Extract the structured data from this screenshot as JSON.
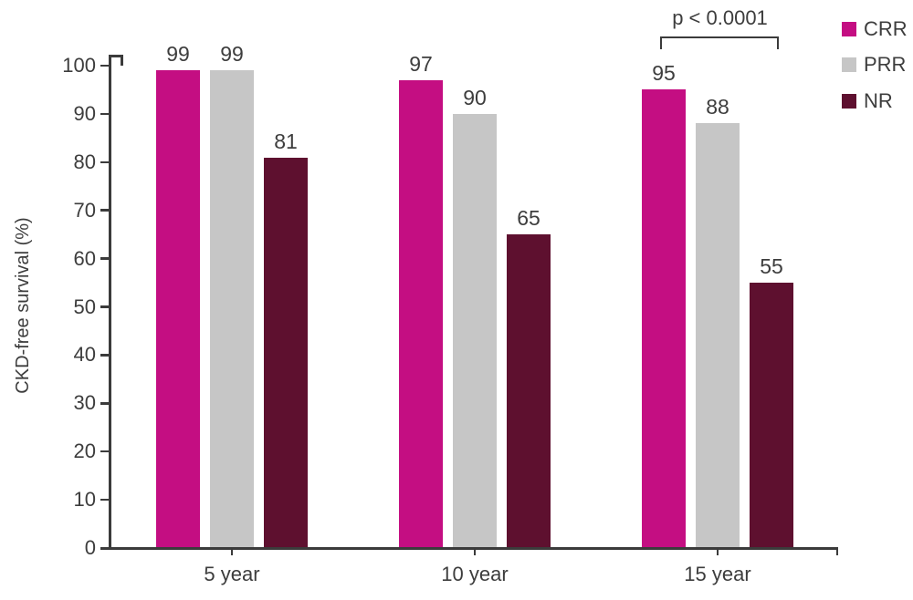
{
  "colors": {
    "ink": "#3B3B3B",
    "text": "#3D3D3D",
    "background": "#FFFFFF",
    "crr": "#C40E82",
    "prr": "#C6C6C6",
    "nr": "#5E102F"
  },
  "chart_data": {
    "type": "bar",
    "title": "",
    "xlabel": "",
    "ylabel": "CKD-free survival (%)",
    "ylim": [
      0,
      100
    ],
    "yticks": [
      0,
      10,
      20,
      30,
      40,
      50,
      60,
      70,
      80,
      90,
      100
    ],
    "grid": false,
    "legend_position": "top-right",
    "categories": [
      "5 year",
      "10 year",
      "15 year"
    ],
    "series": [
      {
        "name": "CRR",
        "color": "#C40E82",
        "values": [
          99,
          97,
          95
        ]
      },
      {
        "name": "PRR",
        "color": "#C6C6C6",
        "values": [
          99,
          90,
          88
        ]
      },
      {
        "name": "NR",
        "color": "#5E102F",
        "values": [
          81,
          65,
          55
        ]
      }
    ],
    "annotation": {
      "text": "p < 0.0001",
      "target_category": "15 year"
    }
  }
}
